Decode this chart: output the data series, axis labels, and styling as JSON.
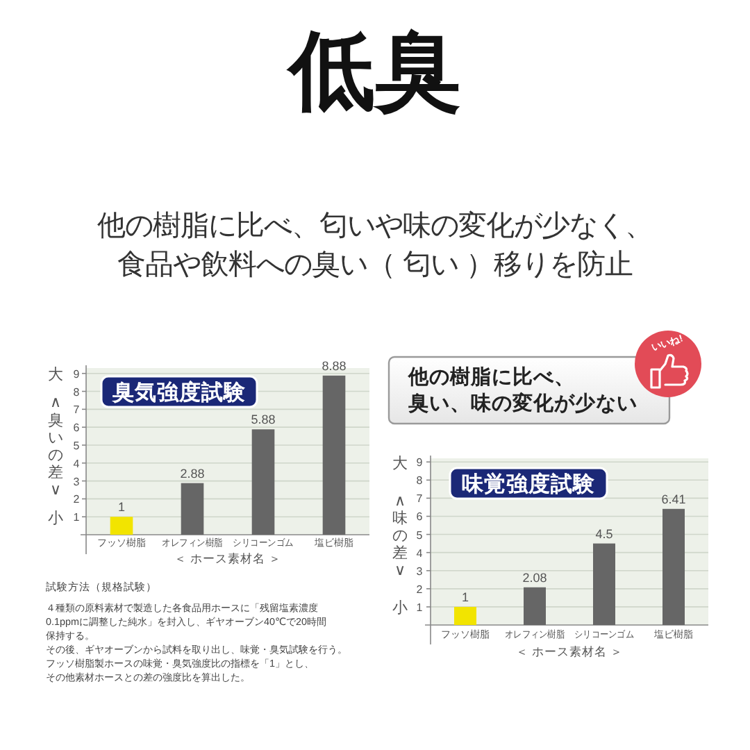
{
  "chart_data": [
    {
      "type": "other",
      "title": "低臭",
      "subtitle": "他の樹脂に比べ、匂いや味の変化が少なく、食品や飲料への臭い（ 匂い ）移りを防止"
    },
    {
      "type": "bar",
      "title": "臭気強度試験",
      "categories": [
        "フッソ樹脂",
        "オレフィン樹脂",
        "シリコーンゴム",
        "塩ビ樹脂"
      ],
      "values": [
        1,
        2.88,
        5.88,
        8.88
      ],
      "colors": [
        "#f2e400",
        "#666666",
        "#666666",
        "#666666"
      ],
      "ylim": [
        0,
        9.3
      ],
      "yticks": [
        1,
        2,
        3,
        4,
        5,
        6,
        7,
        8,
        9
      ],
      "ylabel": "大∧臭いの差∨小",
      "xlabel": "＜ ホース素材名 ＞",
      "grid": "y",
      "data_labels": true,
      "annotations": [
        "試験方法（規格試験）",
        "４種類の原料素材で製造した各食品用ホースに「残留塩素濃度0.1ppmに調整した純水」を封入し、ギヤオーブン40℃で20時間保持する。",
        "その後、ギヤオーブンから試料を取り出し、味覚・臭気試験を行う。",
        "フッソ樹脂製ホースの味覚・臭気強度比の指標を「1」とし、",
        "その他素材ホースとの差の強度比を算出した。"
      ]
    },
    {
      "type": "bar",
      "title": "味覚強度試験",
      "categories": [
        "フッソ樹脂",
        "オレフィン樹脂",
        "シリコーンゴム",
        "塩ビ樹脂"
      ],
      "values": [
        1,
        2.08,
        4.5,
        6.41
      ],
      "colors": [
        "#f2e400",
        "#666666",
        "#666666",
        "#666666"
      ],
      "ylim": [
        0,
        9.2
      ],
      "yticks": [
        1,
        2,
        3,
        4,
        5,
        6,
        7,
        8,
        9
      ],
      "ylabel": "大∧味の差∨小",
      "xlabel": "＜ ホース素材名 ＞",
      "grid": "y",
      "data_labels": true,
      "annotations": [
        "他の樹脂に比べ、",
        "臭い、味の変化が少ない",
        "いいね!"
      ]
    }
  ]
}
